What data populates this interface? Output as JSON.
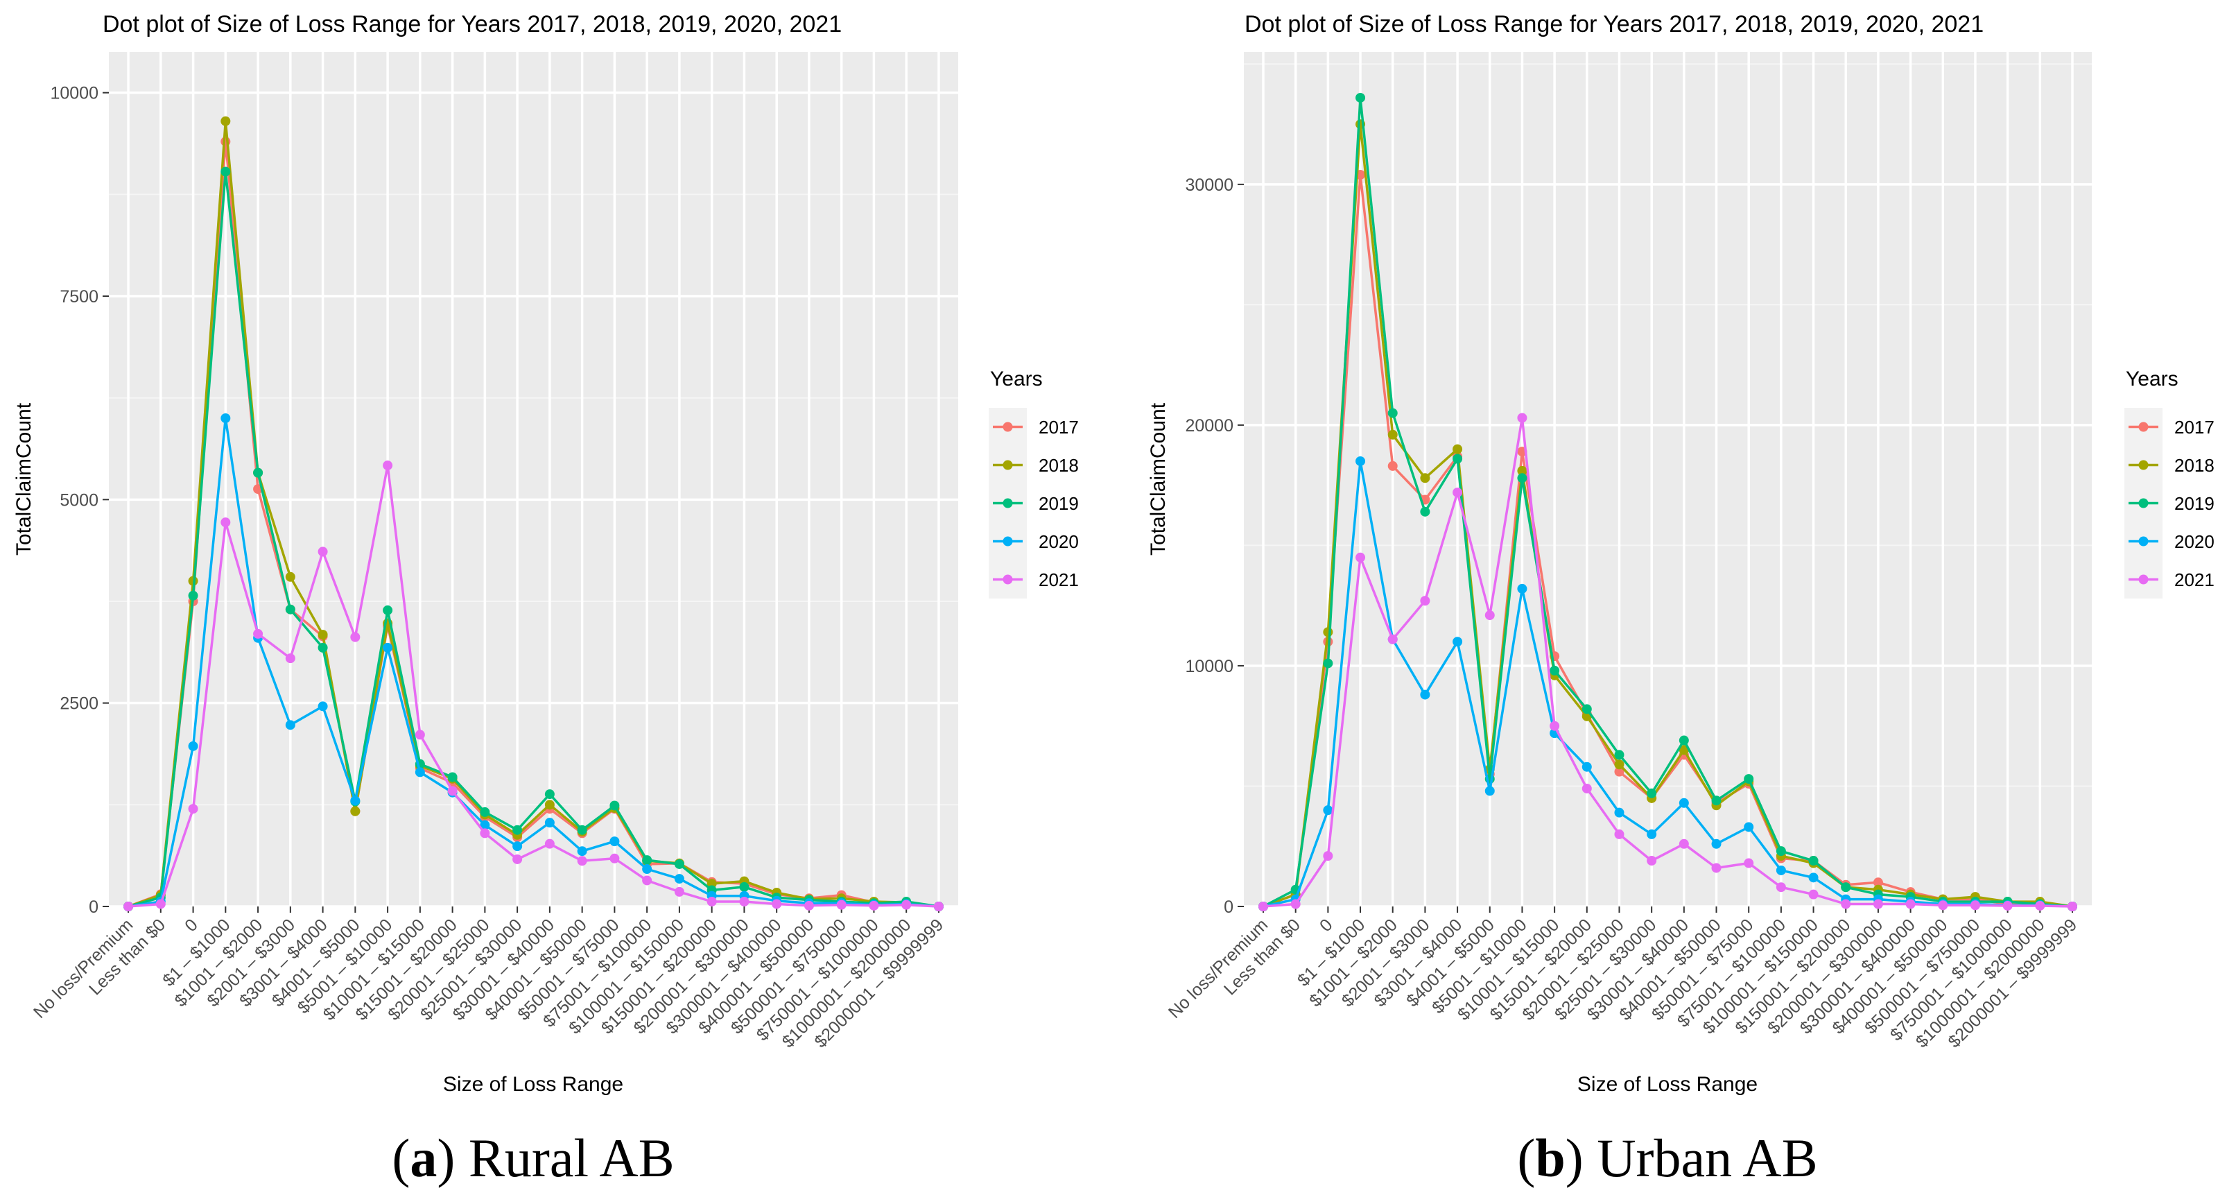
{
  "chart_data": [
    {
      "type": "line",
      "title": "Dot plot of Size of Loss Range for Years 2017, 2018, 2019, 2020, 2021",
      "xlabel": "Size of Loss Range",
      "ylabel": "TotalClaimCount",
      "legend_title": "Years",
      "legend_position": "right",
      "caption_label": "a",
      "caption_text": " Rural AB",
      "ylim": [
        0,
        10500
      ],
      "y_ticks": [
        0,
        2500,
        5000,
        7500,
        10000
      ],
      "y_tick_labels": [
        "0",
        "2500",
        "5000",
        "7500",
        "10000"
      ],
      "categories": [
        "No loss/Premium",
        "Less than $0",
        "0",
        "$1 – $1000",
        "$1001 – $2000",
        "$2001 – $3000",
        "$3001 – $4000",
        "$4001 – $5000",
        "$5001 – $10000",
        "$10001 – $15000",
        "$15001 – $20000",
        "$20001 – $25000",
        "$25001 – $30000",
        "$30001 – $40000",
        "$40001 – $50000",
        "$50001 – $75000",
        "$75001 – $100000",
        "$100001 – $150000",
        "$150001 – $200000",
        "$200001 – $300000",
        "$300001 – $400000",
        "$400001 – $500000",
        "$500001 – $750000",
        "$750001 – $1000000",
        "$1000001 – $2000000",
        "$2000001 – $9999999"
      ],
      "series": [
        {
          "name": "2017",
          "color": "#F8766D",
          "values": [
            0,
            150,
            3750,
            9400,
            5130,
            3650,
            3320,
            1170,
            3450,
            1700,
            1520,
            1100,
            850,
            1200,
            900,
            1200,
            520,
            530,
            300,
            280,
            150,
            100,
            140,
            50,
            50,
            0
          ]
        },
        {
          "name": "2018",
          "color": "#A3A500",
          "values": [
            0,
            140,
            4000,
            9650,
            5330,
            4050,
            3340,
            1170,
            3480,
            1730,
            1570,
            1130,
            880,
            1250,
            920,
            1210,
            560,
            530,
            280,
            310,
            170,
            90,
            100,
            60,
            50,
            0
          ]
        },
        {
          "name": "2019",
          "color": "#00BF7D",
          "values": [
            0,
            110,
            3820,
            9030,
            5330,
            3650,
            3180,
            1290,
            3640,
            1750,
            1590,
            1160,
            940,
            1380,
            940,
            1240,
            570,
            520,
            200,
            240,
            110,
            80,
            60,
            40,
            60,
            0
          ]
        },
        {
          "name": "2020",
          "color": "#00B0F6",
          "values": [
            0,
            60,
            1970,
            6000,
            3300,
            2230,
            2460,
            1300,
            3180,
            1650,
            1400,
            1000,
            740,
            1030,
            680,
            800,
            460,
            340,
            130,
            130,
            70,
            40,
            40,
            20,
            30,
            0
          ]
        },
        {
          "name": "2021",
          "color": "#E76BF3",
          "values": [
            0,
            30,
            1200,
            4720,
            3350,
            3050,
            4360,
            3310,
            5420,
            2110,
            1420,
            900,
            580,
            770,
            560,
            590,
            320,
            180,
            60,
            60,
            30,
            10,
            20,
            10,
            20,
            0
          ]
        }
      ]
    },
    {
      "type": "line",
      "title": "Dot plot of Size of Loss Range for Years 2017, 2018, 2019, 2020, 2021",
      "xlabel": "Size of Loss Range",
      "ylabel": "TotalClaimCount",
      "legend_title": "Years",
      "legend_position": "right",
      "caption_label": "b",
      "caption_text": " Urban AB",
      "ylim": [
        0,
        35500
      ],
      "y_ticks": [
        0,
        10000,
        20000,
        30000
      ],
      "y_tick_labels": [
        "0",
        "10000",
        "20000",
        "30000"
      ],
      "categories": [
        "No loss/Premium",
        "Less than $0",
        "0",
        "$1 – $1000",
        "$1001 – $2000",
        "$2001 – $3000",
        "$3001 – $4000",
        "$4001 – $5000",
        "$5001 – $10000",
        "$10001 – $15000",
        "$15001 – $20000",
        "$20001 – $25000",
        "$25001 – $30000",
        "$30001 – $40000",
        "$40001 – $50000",
        "$50001 – $75000",
        "$75001 – $100000",
        "$100001 – $150000",
        "$150001 – $200000",
        "$200001 – $300000",
        "$300001 – $400000",
        "$400001 – $500000",
        "$500001 – $750000",
        "$750001 – $1000000",
        "$1000001 – $2000000",
        "$2000001 – $9999999"
      ],
      "series": [
        {
          "name": "2017",
          "color": "#F8766D",
          "values": [
            0,
            500,
            11000,
            30400,
            18300,
            16900,
            18700,
            5500,
            18900,
            10400,
            8000,
            5600,
            4500,
            6300,
            4300,
            5100,
            2000,
            1900,
            900,
            1000,
            600,
            300,
            300,
            100,
            100,
            0
          ]
        },
        {
          "name": "2018",
          "color": "#A3A500",
          "values": [
            0,
            500,
            11400,
            32500,
            19600,
            17800,
            19000,
            5700,
            18100,
            9600,
            7900,
            5900,
            4500,
            6500,
            4200,
            5200,
            2100,
            1800,
            800,
            700,
            500,
            300,
            400,
            200,
            200,
            0
          ]
        },
        {
          "name": "2019",
          "color": "#00BF7D",
          "values": [
            0,
            700,
            10100,
            33600,
            20500,
            16400,
            18600,
            5300,
            17800,
            9800,
            8200,
            6300,
            4700,
            6900,
            4400,
            5300,
            2300,
            1900,
            800,
            500,
            400,
            200,
            200,
            200,
            100,
            0
          ]
        },
        {
          "name": "2020",
          "color": "#00B0F6",
          "values": [
            0,
            300,
            4000,
            18500,
            11100,
            8800,
            11000,
            4800,
            13200,
            7200,
            5800,
            3900,
            3000,
            4300,
            2600,
            3300,
            1500,
            1200,
            300,
            300,
            200,
            100,
            100,
            50,
            50,
            0
          ]
        },
        {
          "name": "2021",
          "color": "#E76BF3",
          "values": [
            0,
            100,
            2100,
            14500,
            11100,
            12700,
            17200,
            12100,
            20300,
            7500,
            4900,
            3000,
            1900,
            2600,
            1600,
            1800,
            800,
            500,
            100,
            100,
            100,
            50,
            50,
            30,
            30,
            0
          ]
        }
      ]
    }
  ]
}
